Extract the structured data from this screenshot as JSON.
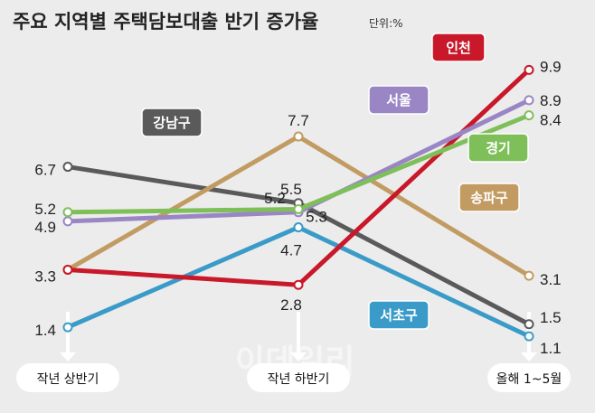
{
  "title": "주요 지역별 주택담보대출 반기 증가율",
  "unit": "단위:%",
  "watermark": "이데일리",
  "chart_data": {
    "type": "line",
    "categories": [
      "작년 상반기",
      "작년 하반기",
      "올해 1~5월"
    ],
    "ylim": [
      0,
      11
    ],
    "grid": false,
    "series": [
      {
        "name": "강남구",
        "color": "#5a5a5a",
        "values": [
          6.7,
          5.5,
          1.5
        ],
        "labels": [
          "6.7",
          "5.5",
          "1.5"
        ]
      },
      {
        "name": "송파구",
        "color": "#c29b63",
        "values": [
          3.3,
          7.7,
          3.1
        ],
        "labels": [
          "3.3",
          "7.7",
          "3.1"
        ]
      },
      {
        "name": "서초구",
        "color": "#3a9bc8",
        "values": [
          1.4,
          4.7,
          1.1
        ],
        "labels": [
          "1.4",
          "4.7",
          "1.1"
        ]
      },
      {
        "name": "인천",
        "color": "#c8182a",
        "values": [
          3.3,
          2.8,
          9.9
        ],
        "labels": [
          "",
          "2.8",
          "9.9"
        ]
      },
      {
        "name": "서울",
        "color": "#9a86c4",
        "values": [
          4.9,
          5.2,
          8.9
        ],
        "labels": [
          "4.9",
          "5.2",
          "8.9"
        ]
      },
      {
        "name": "경기",
        "color": "#7fbf5a",
        "values": [
          5.2,
          5.3,
          8.4
        ],
        "labels": [
          "5.2",
          "5.3",
          "8.4"
        ]
      }
    ]
  }
}
